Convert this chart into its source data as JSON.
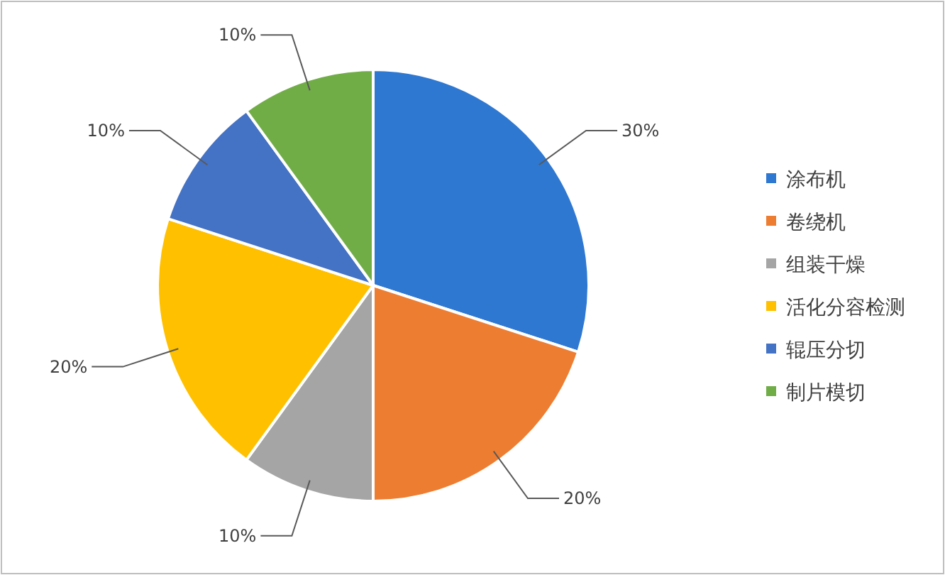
{
  "chart_data": {
    "type": "pie",
    "categories": [
      "涂布机",
      "卷绕机",
      "组装干燥",
      "活化分容检测",
      "辊压分切",
      "制片模切"
    ],
    "values": [
      30,
      20,
      10,
      20,
      10,
      10
    ],
    "colors": [
      "#2e78d2",
      "#ed7d31",
      "#a5a5a5",
      "#ffc000",
      "#4472c4",
      "#70ad47"
    ],
    "value_labels": [
      "30%",
      "20%",
      "10%",
      "20%",
      "10%",
      "10%"
    ],
    "legend": "right"
  }
}
